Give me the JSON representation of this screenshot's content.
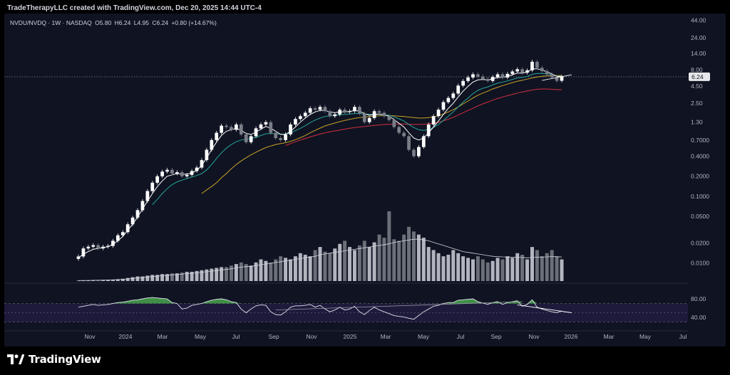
{
  "header": {
    "attribution": "TradeTherapyLLC created with TradingView.com, Dec 20, 2025 14:44 UTC-4"
  },
  "legend": {
    "symbol": "NVDU/NVDQ · 1W · NASDAQ",
    "open": "O5.80",
    "high": "H6.24",
    "low": "L4.95",
    "close": "C6.24",
    "change": "+0.80 (+14.67%)"
  },
  "branding": {
    "logo_text": "TradingView",
    "logo_icon": "tradingview-logo-icon"
  },
  "colors": {
    "background": "#0f1322",
    "candle_up": "#ffffff",
    "candle_down": "#7a7e87",
    "ma_fast": "#ffffff",
    "ma_mid": "#26a69a",
    "ma_slow": "#c9a227",
    "ma_long": "#d32f3f",
    "volume": "#b2b5be",
    "rsi_fill": "#4caf50",
    "rsi_band": "#2a2050"
  },
  "chart_data": [
    {
      "type": "candlestick",
      "scale": "log",
      "x_ticks": [
        "Nov",
        "2024",
        "Mar",
        "May",
        "Jul",
        "Sep",
        "Nov",
        "2025",
        "Mar",
        "May",
        "Jul",
        "Sep",
        "Nov",
        "2026",
        "Mar",
        "May",
        "Jul"
      ],
      "y_ticks": [
        "44.00",
        "24.00",
        "14.00",
        "8.00",
        "4.50",
        "2.50",
        "1.30",
        "0.7000",
        "0.4000",
        "0.2000",
        "0.1000",
        "0.0500",
        "0.0200",
        "0.0100"
      ],
      "ylim": [
        0.0065,
        48
      ],
      "last_price_label": "6.24",
      "last_price": 6.24,
      "start": 0.0115,
      "closes": [
        0.0125,
        0.0165,
        0.0175,
        0.0185,
        0.0165,
        0.0175,
        0.018,
        0.0215,
        0.026,
        0.029,
        0.038,
        0.048,
        0.062,
        0.085,
        0.12,
        0.16,
        0.2,
        0.235,
        0.25,
        0.22,
        0.23,
        0.2,
        0.21,
        0.24,
        0.27,
        0.35,
        0.5,
        0.7,
        0.9,
        1.15,
        1.1,
        1.0,
        1.2,
        0.85,
        0.65,
        0.8,
        1.05,
        1.2,
        1.3,
        0.9,
        0.75,
        0.7,
        0.85,
        1.2,
        1.45,
        1.6,
        1.8,
        2.1,
        2.0,
        2.2,
        1.9,
        1.6,
        1.7,
        2.0,
        1.85,
        1.9,
        2.2,
        1.75,
        1.3,
        1.5,
        1.9,
        1.8,
        1.6,
        1.4,
        1.1,
        0.9,
        0.8,
        0.5,
        0.4,
        0.55,
        0.8,
        1.2,
        1.6,
        2.0,
        2.6,
        3.0,
        3.5,
        4.6,
        5.4,
        6.1,
        6.8,
        6.3,
        5.8,
        5.4,
        6.2,
        6.8,
        6.1,
        6.9,
        7.5,
        8.1,
        7.2,
        7.8,
        10.5,
        8.5,
        7.6,
        6.8,
        6.1,
        5.44,
        6.24
      ],
      "ma_fast": [
        0.012,
        0.0135,
        0.0148,
        0.016,
        0.0165,
        0.017,
        0.0175,
        0.019,
        0.0215,
        0.025,
        0.031,
        0.038,
        0.049,
        0.064,
        0.085,
        0.11,
        0.14,
        0.17,
        0.2,
        0.21,
        0.22,
        0.215,
        0.215,
        0.225,
        0.245,
        0.29,
        0.38,
        0.5,
        0.65,
        0.82,
        0.95,
        1.0,
        1.05,
        0.98,
        0.88,
        0.85,
        0.92,
        1.02,
        1.12,
        1.05,
        0.95,
        0.85,
        0.85,
        0.95,
        1.1,
        1.3,
        1.5,
        1.7,
        1.85,
        1.95,
        1.95,
        1.85,
        1.8,
        1.85,
        1.85,
        1.88,
        1.95,
        1.9,
        1.75,
        1.65,
        1.7,
        1.72,
        1.68,
        1.58,
        1.42,
        1.25,
        1.1,
        0.9,
        0.75,
        0.7,
        0.75,
        0.9,
        1.1,
        1.35,
        1.7,
        2.1,
        2.5,
        3.1,
        3.8,
        4.5,
        5.2,
        5.6,
        5.7,
        5.6,
        5.8,
        6.1,
        6.1,
        6.3,
        6.7,
        7.1,
        7.1,
        7.3,
        8.2,
        8.2,
        7.9,
        7.4,
        6.9,
        6.3,
        6.3
      ],
      "ma_mid": [
        null,
        null,
        null,
        null,
        null,
        null,
        null,
        null,
        null,
        null,
        null,
        null,
        null,
        null,
        null,
        0.075,
        0.09,
        0.11,
        0.13,
        0.15,
        0.165,
        0.175,
        0.185,
        0.195,
        0.205,
        0.22,
        0.25,
        0.3,
        0.37,
        0.45,
        0.53,
        0.6,
        0.66,
        0.7,
        0.72,
        0.74,
        0.77,
        0.82,
        0.87,
        0.88,
        0.87,
        0.86,
        0.86,
        0.9,
        0.97,
        1.05,
        1.15,
        1.28,
        1.4,
        1.5,
        1.58,
        1.62,
        1.65,
        1.68,
        1.7,
        1.72,
        1.75,
        1.75,
        1.72,
        1.7,
        1.7,
        1.7,
        1.68,
        1.64,
        1.56,
        1.46,
        1.35,
        1.2,
        1.08,
        1.0,
        0.98,
        1.0,
        1.08,
        1.2,
        1.38,
        1.6,
        1.85,
        2.2,
        2.6,
        3.0,
        3.5,
        3.9,
        4.2,
        4.4,
        4.7,
        5.0,
        5.2,
        5.4,
        5.7,
        6.0,
        6.1,
        6.3,
        6.8,
        7.0,
        7.0,
        6.9,
        6.7,
        6.4,
        6.3
      ],
      "ma_slow": [
        null,
        null,
        null,
        null,
        null,
        null,
        null,
        null,
        null,
        null,
        null,
        null,
        null,
        null,
        null,
        null,
        null,
        null,
        null,
        null,
        null,
        null,
        null,
        null,
        null,
        0.11,
        0.125,
        0.14,
        0.16,
        0.19,
        0.22,
        0.26,
        0.3,
        0.34,
        0.38,
        0.42,
        0.46,
        0.5,
        0.54,
        0.57,
        0.6,
        0.62,
        0.64,
        0.67,
        0.71,
        0.76,
        0.82,
        0.9,
        0.98,
        1.06,
        1.14,
        1.2,
        1.26,
        1.32,
        1.38,
        1.43,
        1.48,
        1.52,
        1.55,
        1.58,
        1.6,
        1.62,
        1.63,
        1.63,
        1.62,
        1.6,
        1.58,
        1.55,
        1.52,
        1.5,
        1.5,
        1.52,
        1.56,
        1.62,
        1.72,
        1.85,
        2.0,
        2.2,
        2.45,
        2.7,
        3.0,
        3.3,
        3.55,
        3.8,
        4.1,
        4.35,
        4.6,
        4.85,
        5.1,
        5.35,
        5.55,
        5.75,
        6.0,
        6.2,
        6.35,
        6.45,
        6.5,
        6.5,
        6.55
      ],
      "ma_long": [
        null,
        null,
        null,
        null,
        null,
        null,
        null,
        null,
        null,
        null,
        null,
        null,
        null,
        null,
        null,
        null,
        null,
        null,
        null,
        null,
        null,
        null,
        null,
        null,
        null,
        null,
        null,
        null,
        null,
        null,
        null,
        null,
        null,
        null,
        null,
        null,
        null,
        null,
        null,
        null,
        null,
        null,
        0.58,
        0.62,
        0.66,
        0.7,
        0.74,
        0.78,
        0.82,
        0.86,
        0.9,
        0.93,
        0.96,
        0.99,
        1.02,
        1.05,
        1.08,
        1.1,
        1.12,
        1.14,
        1.16,
        1.18,
        1.2,
        1.21,
        1.22,
        1.22,
        1.22,
        1.21,
        1.2,
        1.2,
        1.21,
        1.23,
        1.26,
        1.3,
        1.36,
        1.44,
        1.54,
        1.66,
        1.8,
        1.95,
        2.1,
        2.28,
        2.45,
        2.6,
        2.78,
        2.95,
        3.1,
        3.25,
        3.4,
        3.55,
        3.7,
        3.82,
        3.95,
        4.05,
        4.1,
        4.1,
        4.05,
        4.0,
        4.0
      ],
      "trendline": [
        [
          94,
          5.5
        ],
        [
          100,
          6.7
        ]
      ],
      "volume": [
        0.3,
        0.4,
        0.5,
        0.6,
        0.6,
        0.7,
        0.8,
        1.0,
        1.2,
        1.5,
        2.0,
        2.5,
        3.0,
        3.0,
        3.5,
        4.0,
        4.0,
        4.5,
        4.5,
        5.0,
        5.0,
        5.5,
        6.0,
        6.0,
        6.5,
        7.0,
        7.5,
        8.0,
        8.5,
        9.0,
        9.0,
        10.0,
        11.0,
        12.0,
        11.0,
        10.0,
        12.0,
        14.0,
        13.0,
        12.0,
        14.0,
        16.0,
        15.0,
        14.0,
        16.0,
        18.0,
        17.0,
        16.0,
        20.0,
        22.0,
        19.0,
        18.0,
        21.0,
        24.0,
        26.0,
        22.0,
        20.0,
        23.0,
        26.0,
        22.0,
        25.0,
        30.0,
        28.0,
        45.0,
        27.0,
        26.0,
        30.0,
        35.0,
        32.0,
        30.0,
        28.0,
        22.0,
        20.0,
        18.0,
        16.0,
        17.0,
        20.0,
        18.0,
        16.0,
        15.0,
        14.0,
        16.0,
        14.0,
        12.0,
        13.0,
        15.0,
        14.0,
        16.0,
        15.0,
        18.0,
        17.0,
        14.0,
        22.0,
        20.0,
        16.0,
        18.0,
        20.0,
        16.0,
        14.0
      ],
      "volume_ma": [
        0.3,
        0.35,
        0.4,
        0.5,
        0.55,
        0.6,
        0.7,
        0.8,
        0.95,
        1.1,
        1.4,
        1.7,
        2.0,
        2.3,
        2.6,
        2.9,
        3.2,
        3.4,
        3.7,
        4.0,
        4.2,
        4.5,
        4.8,
        5.0,
        5.3,
        5.7,
        6.0,
        6.4,
        6.8,
        7.2,
        7.5,
        8.0,
        8.5,
        9.0,
        9.3,
        9.5,
        10.0,
        10.5,
        11.0,
        11.5,
        12.0,
        12.5,
        13.0,
        13.5,
        14.0,
        14.5,
        15.0,
        15.5,
        16.0,
        17.0,
        17.5,
        18.0,
        18.5,
        19.0,
        19.5,
        20.0,
        20.5,
        21.0,
        21.5,
        22.0,
        22.5,
        23.0,
        23.5,
        24.0,
        25.0,
        25.5,
        26.0,
        26.5,
        27.0,
        27.0,
        26.5,
        26.0,
        25.0,
        24.0,
        23.0,
        22.0,
        21.0,
        20.0,
        19.0,
        18.5,
        18.0,
        17.5,
        17.0,
        16.5,
        16.0,
        15.8,
        15.6,
        15.5,
        15.4,
        15.3,
        15.2,
        15.0,
        15.2,
        15.4,
        15.5,
        15.6,
        15.8,
        15.7,
        15.5
      ]
    },
    {
      "type": "line",
      "panel": "oscillator",
      "y_ticks": [
        "80.00",
        "40.00"
      ],
      "ylim": [
        20,
        100
      ],
      "bands": [
        70,
        30
      ],
      "mid": 50,
      "values": [
        62,
        64,
        66,
        68,
        66,
        67,
        68,
        70,
        72,
        73,
        75,
        77,
        78,
        80,
        82,
        83,
        82,
        81,
        80,
        72,
        70,
        58,
        60,
        66,
        68,
        70,
        74,
        77,
        79,
        80,
        78,
        74,
        72,
        58,
        50,
        58,
        65,
        67,
        66,
        52,
        46,
        45,
        52,
        62,
        65,
        65,
        66,
        68,
        62,
        66,
        58,
        52,
        56,
        62,
        56,
        58,
        64,
        52,
        46,
        55,
        62,
        56,
        52,
        48,
        44,
        42,
        41,
        38,
        36,
        44,
        52,
        58,
        64,
        66,
        70,
        72,
        72,
        77,
        78,
        79,
        80,
        74,
        71,
        68,
        72,
        74,
        68,
        72,
        74,
        76,
        64,
        68,
        78,
        62,
        58,
        55,
        52,
        50,
        54
      ],
      "divergence_line": [
        [
          89,
          67
        ],
        [
          100,
          50
        ]
      ],
      "trend_line": [
        [
          40,
          56
        ],
        [
          90,
          74
        ]
      ]
    }
  ]
}
